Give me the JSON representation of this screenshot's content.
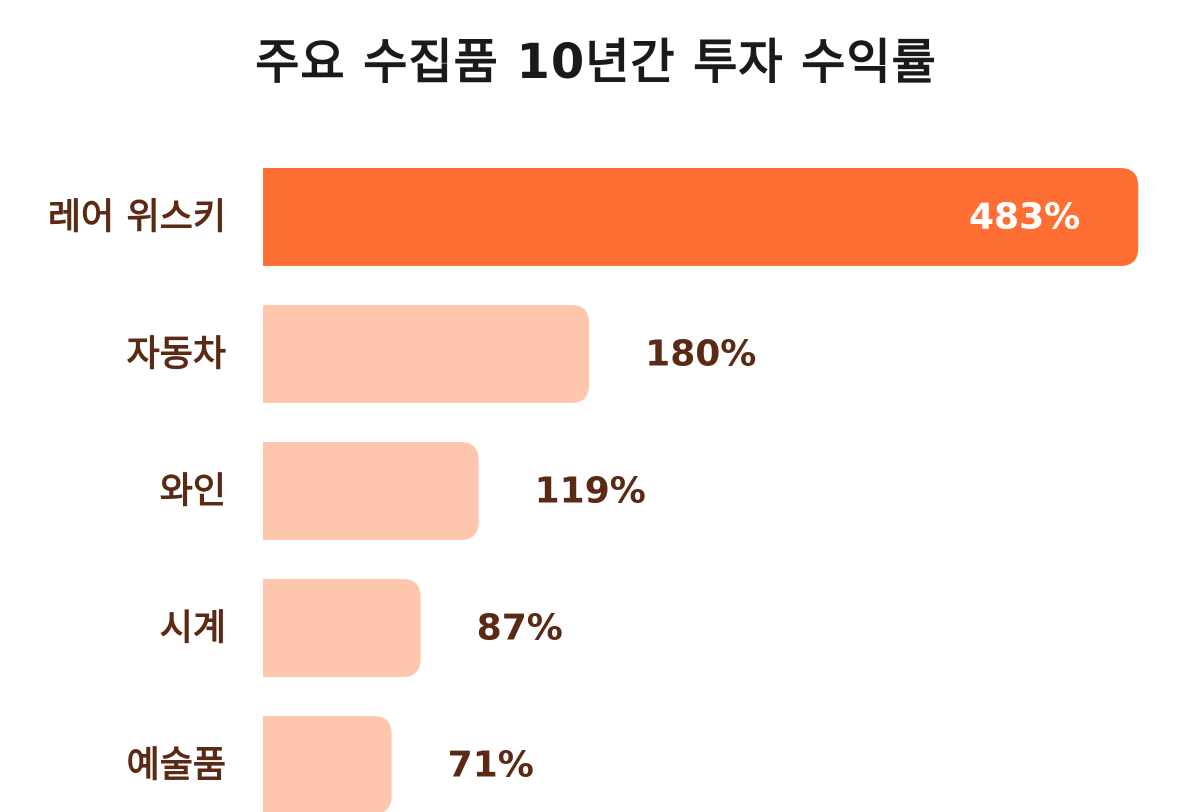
{
  "chart_data": {
    "type": "bar",
    "orientation": "horizontal",
    "title": "주요 수집품 10년간 투자 수익률",
    "categories": [
      "레어 위스키",
      "자동차",
      "와인",
      "시계",
      "예술품"
    ],
    "values": [
      483,
      180,
      119,
      87,
      71
    ],
    "value_labels": [
      "483%",
      "180%",
      "119%",
      "87%",
      "71%"
    ],
    "unit": "%",
    "xlim": [
      0,
      500
    ],
    "grid": false,
    "legend": "none",
    "colors": {
      "highlight_bar": "#FF6E33",
      "bar": "#FFC6AE",
      "highlight_label": "#FFFFFF",
      "label": "#5A2A14",
      "title": "#1A1A1A"
    }
  }
}
